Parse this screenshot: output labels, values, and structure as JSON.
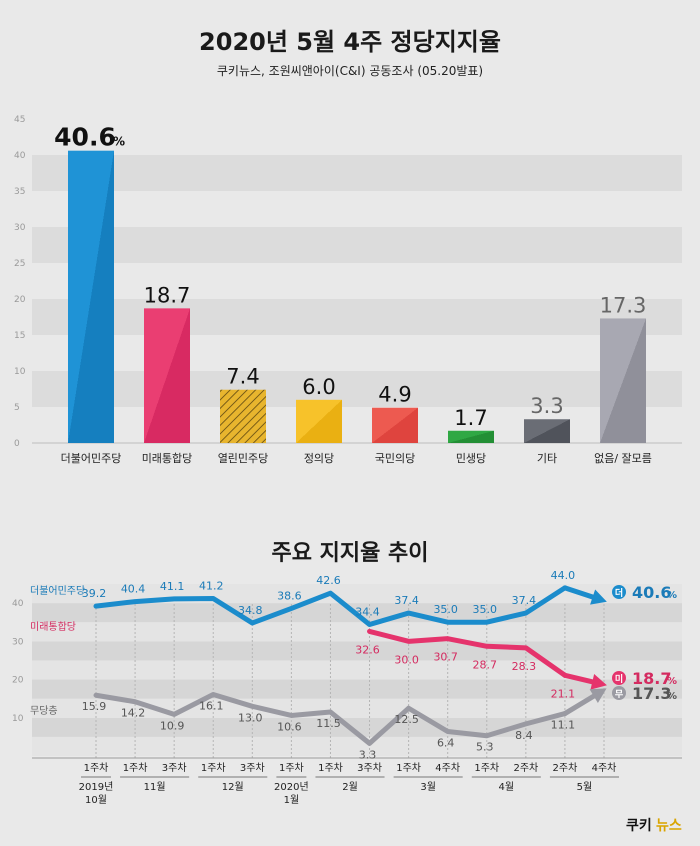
{
  "header": {
    "title": "2020년 5월 4주 정당지지율",
    "subtitle": "쿠키뉴스, 조원씨앤아이(C&I) 공동조사 (05.20발표)"
  },
  "colors": {
    "minjoo": "#1b8ccc",
    "mirae": "#e5336c",
    "yeollin": "#e8b52e",
    "jeongui": "#f2bb20",
    "gukmin": "#e8504a",
    "minsaeng": "#2a9e3c",
    "gita": "#5d6068",
    "eopseum": "#9e9ea8",
    "neutral": "#9a9aa2"
  },
  "chart_data": [
    {
      "type": "bar",
      "title": "2020년 5월 4주 정당지지율",
      "categories": [
        "더불어민주당",
        "미래통합당",
        "열린민주당",
        "정의당",
        "국민의당",
        "민생당",
        "기타",
        "없음/ 잘모름"
      ],
      "values": [
        40.6,
        18.7,
        7.4,
        6.0,
        4.9,
        1.7,
        3.3,
        17.3
      ],
      "value_labels": [
        "40.6",
        "18.7",
        "7.4",
        "6.0",
        "4.9",
        "1.7",
        "3.3",
        "17.3"
      ],
      "percent_sign": "%",
      "ylim": [
        0,
        45
      ],
      "yticks": [
        "0",
        "5",
        "10",
        "15",
        "20",
        "25",
        "30",
        "35",
        "40",
        "45"
      ],
      "grid": true
    },
    {
      "type": "line",
      "title": "주요 지지율 추이",
      "x": [
        "1주차",
        "1주차",
        "3주차",
        "1주차",
        "3주차",
        "1주차",
        "1주차",
        "3주차",
        "1주차",
        "4주차",
        "1주차",
        "2주차",
        "2주차",
        "4주차"
      ],
      "x_groups": [
        {
          "label": "2019년\n10월",
          "lines": [
            "2019년",
            "10월"
          ]
        },
        {
          "label": "11월",
          "lines": [
            "11월"
          ]
        },
        {
          "label": "12월",
          "lines": [
            "12월"
          ]
        },
        {
          "label": "2020년\n1월",
          "lines": [
            "2020년",
            "1월"
          ]
        },
        {
          "label": "2월",
          "lines": [
            "2월"
          ]
        },
        {
          "label": "3월",
          "lines": [
            "3월"
          ]
        },
        {
          "label": "4월",
          "lines": [
            "4월"
          ]
        },
        {
          "label": "5월",
          "lines": [
            "5월"
          ]
        }
      ],
      "ylim": [
        0,
        45
      ],
      "yticks": [
        "10",
        "20",
        "30",
        "40"
      ],
      "series": [
        {
          "name": "더불어민주당",
          "values": [
            39.2,
            40.4,
            41.1,
            41.2,
            34.8,
            38.6,
            42.6,
            34.4,
            37.4,
            35.0,
            35.0,
            37.4,
            44.0,
            40.6
          ],
          "labels": [
            "39.2",
            "40.4",
            "41.1",
            "41.2",
            "34.8",
            "38.6",
            "42.6",
            "34.4",
            "37.4",
            "35.0",
            "35.0",
            "37.4",
            "44.0",
            ""
          ],
          "end_badge": "더",
          "end_label": "40.6",
          "end_unit": "%"
        },
        {
          "name": "미래통합당",
          "values": [
            null,
            null,
            null,
            null,
            null,
            null,
            null,
            32.6,
            30.0,
            30.7,
            28.7,
            28.3,
            21.1,
            18.7
          ],
          "labels": [
            "",
            "",
            "",
            "",
            "",
            "",
            "",
            "32.6",
            "30.0",
            "30.7",
            "28.7",
            "28.3",
            "21.1",
            ""
          ],
          "end_badge": "미",
          "end_label": "18.7",
          "end_unit": "%"
        },
        {
          "name": "무당층",
          "values": [
            15.9,
            14.2,
            10.9,
            16.1,
            13.0,
            10.6,
            11.5,
            3.3,
            12.5,
            6.4,
            5.3,
            8.4,
            11.1,
            17.3
          ],
          "labels": [
            "15.9",
            "14.2",
            "10.9",
            "16.1",
            "13.0",
            "10.6",
            "11.5",
            "3.3",
            "12.5",
            "6.4",
            "5.3",
            "8.4",
            "11.1",
            ""
          ],
          "end_badge": "무",
          "end_label": "17.3",
          "end_unit": "%"
        }
      ]
    }
  ],
  "brand": {
    "kuki": "쿠키",
    "news": "뉴스"
  }
}
